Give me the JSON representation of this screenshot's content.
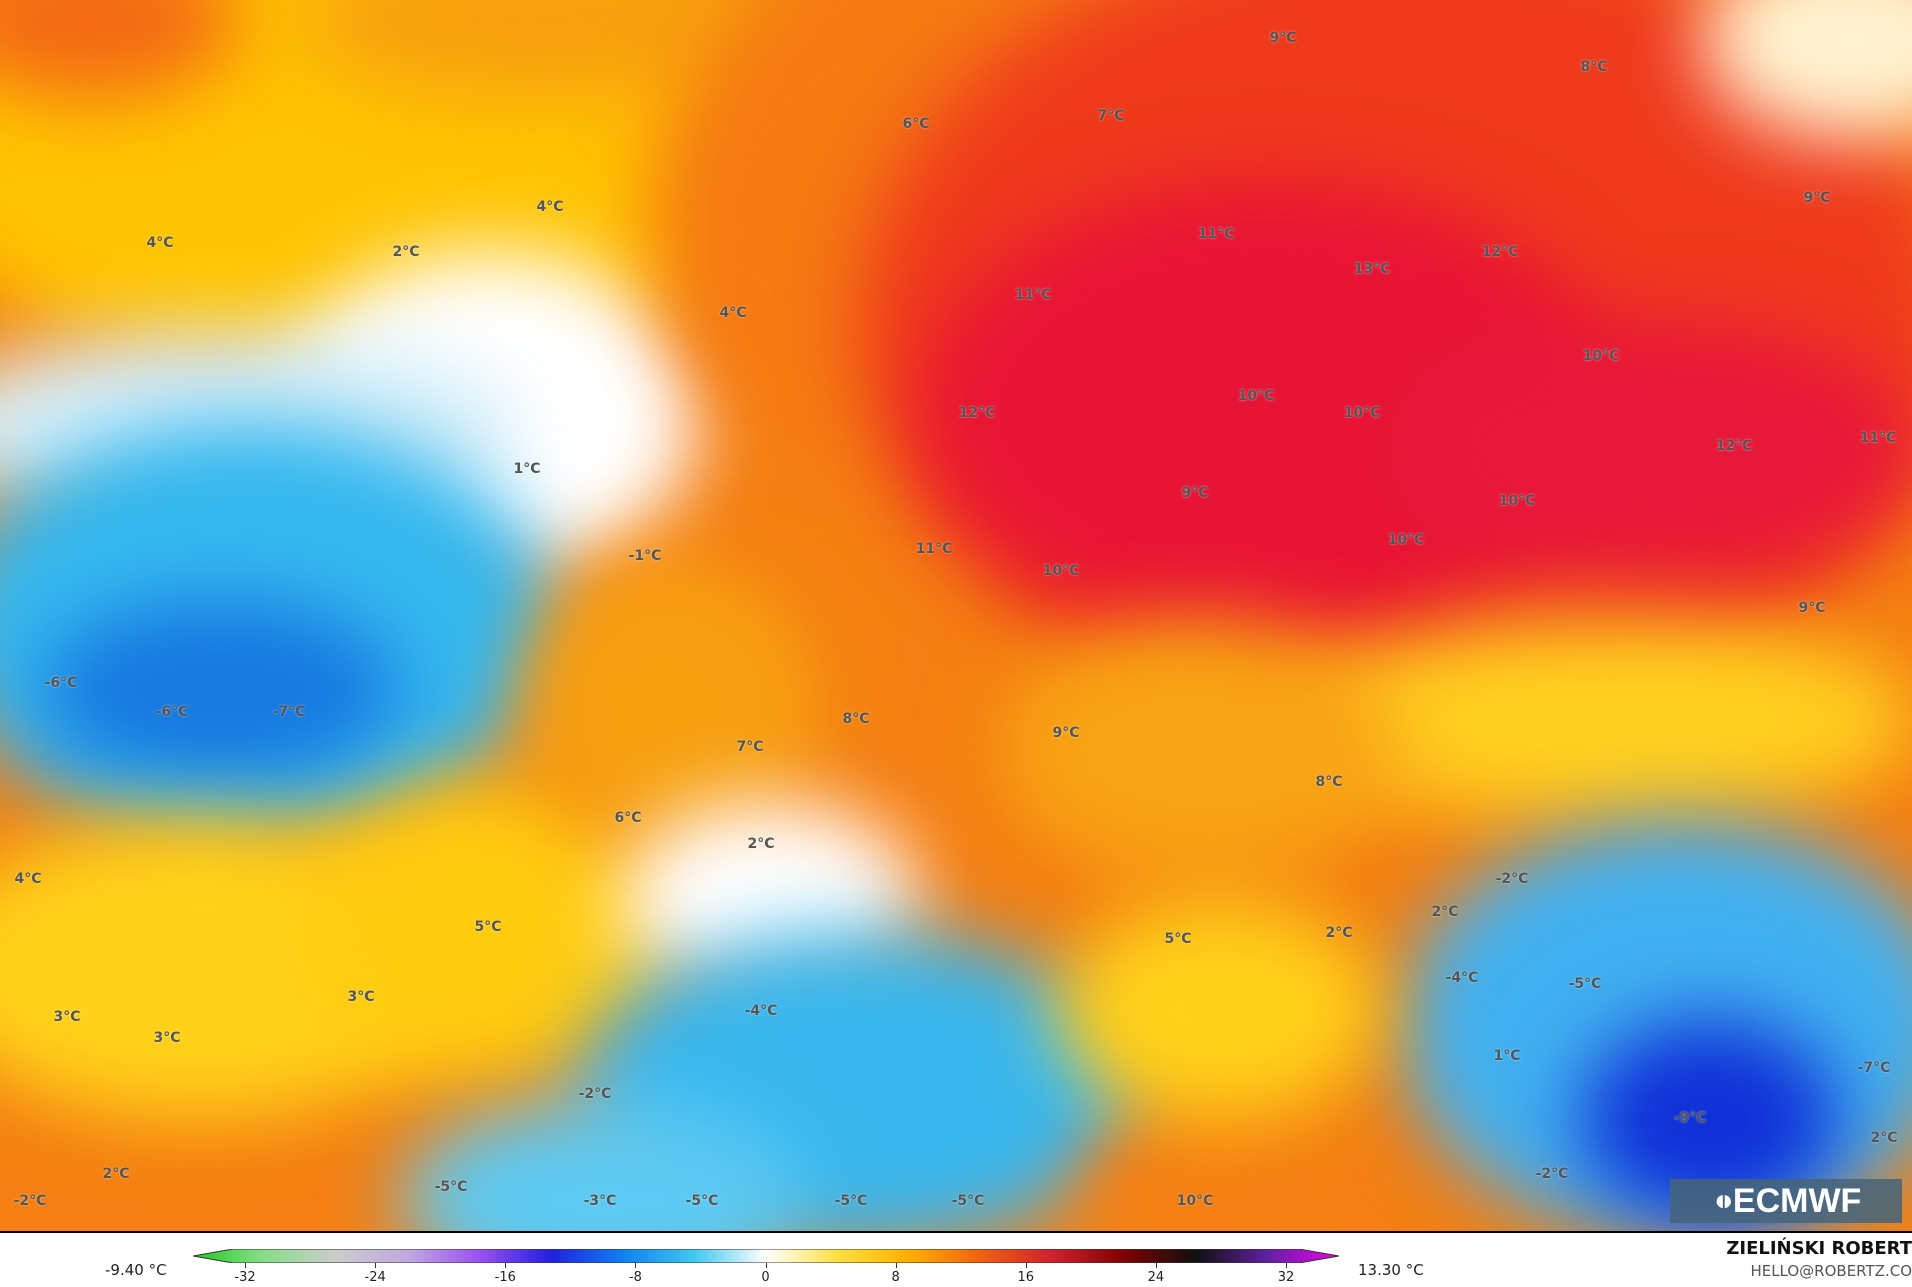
{
  "map": {
    "field": "temperature",
    "unit": "°C",
    "labels": [
      "9°C",
      "8°C",
      "6°C",
      "7°C",
      "4°C",
      "4°C",
      "2°C",
      "9°C",
      "11°C",
      "13°C",
      "12°C",
      "11°C",
      "4°C",
      "10°C",
      "10°C",
      "10°C",
      "12°C",
      "11°C",
      "12°C",
      "1°C",
      "9°C",
      "10°C",
      "10°C",
      "11°C",
      "-1°C",
      "10°C",
      "9°C",
      "-6°C",
      "-6°C",
      "-7°C",
      "8°C",
      "9°C",
      "7°C",
      "8°C",
      "6°C",
      "2°C",
      "-2°C",
      "4°C",
      "2°C",
      "5°C",
      "5°C",
      "2°C",
      "-4°C",
      "-5°C",
      "3°C",
      "-4°C",
      "3°C",
      "3°C",
      "1°C",
      "-7°C",
      "-2°C",
      "-9°C",
      "2°C",
      "2°C",
      "-2°C",
      "-5°C",
      "-2°C",
      "-3°C",
      "-5°C",
      "-5°C",
      "-5°C",
      "10°C"
    ]
  },
  "logo": {
    "text": "ECMWF"
  },
  "legend": {
    "min_label": "-9.40 °C",
    "max_label": "13.30 °C",
    "ticks": [
      "-32",
      "-24",
      "-16",
      "-8",
      "0",
      "8",
      "16",
      "24",
      "32"
    ],
    "colors": [
      "#22cc22",
      "#88dd88",
      "#cccccc",
      "#c0a8e0",
      "#9a50f0",
      "#2020e0",
      "#1080f0",
      "#40c8f0",
      "#ffffff",
      "#ffe040",
      "#ffb000",
      "#f06010",
      "#d02030",
      "#800000",
      "#101010",
      "#6020a0",
      "#f000f0"
    ]
  },
  "credits": {
    "author": "ZIELIŃSKI ROBERT",
    "contact": "HELLO@ROBERTZ.CO"
  }
}
